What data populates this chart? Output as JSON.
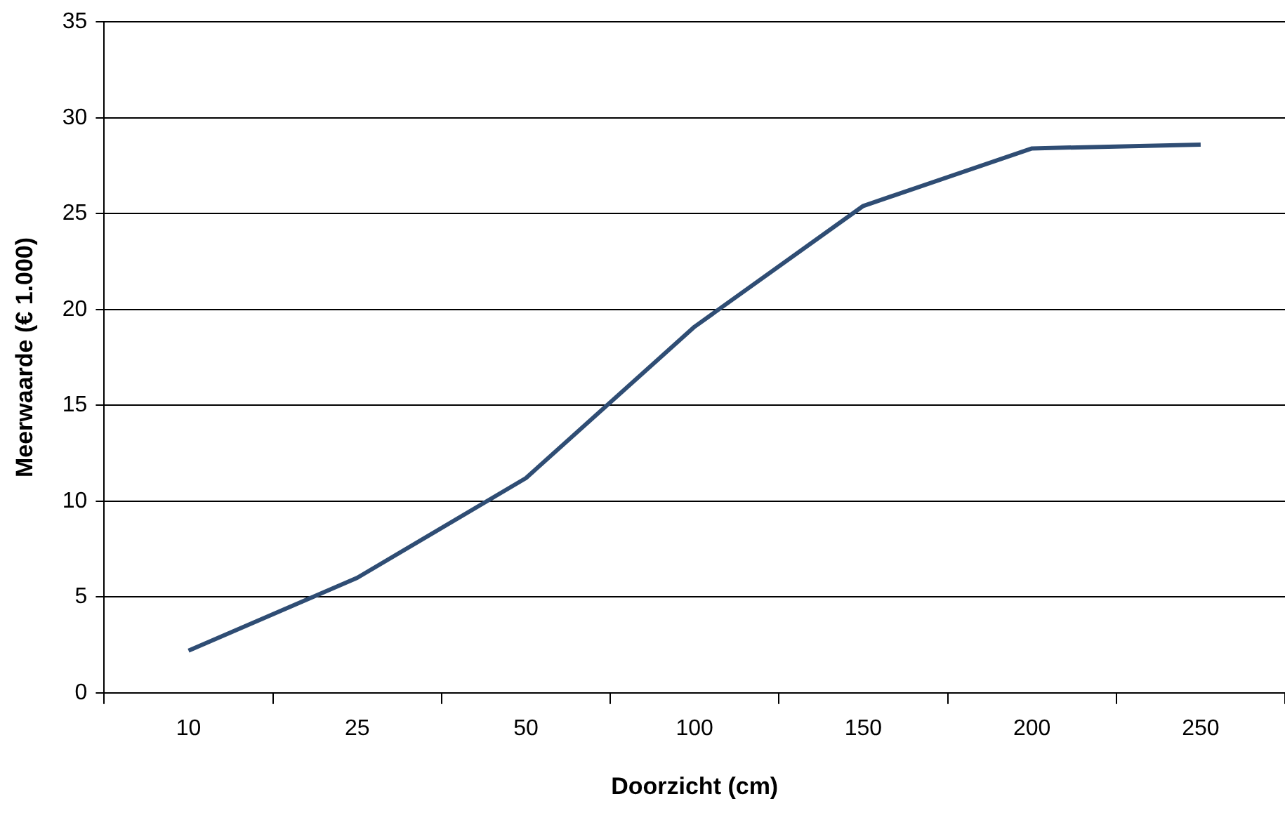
{
  "chart_data": {
    "type": "line",
    "xlabel": "Doorzicht (cm)",
    "ylabel": "Meerwaarde (€ 1.000)",
    "categories": [
      "10",
      "25",
      "50",
      "100",
      "150",
      "200",
      "250"
    ],
    "series": [
      {
        "color": "#2f4d74",
        "values": [
          2.2,
          6.0,
          11.2,
          19.1,
          25.4,
          28.4,
          28.6
        ]
      }
    ],
    "ylim": [
      0,
      35
    ],
    "yticks": [
      0,
      5,
      10,
      15,
      20,
      25,
      30,
      35
    ],
    "grid": "y",
    "legend": false,
    "marker": "none",
    "line_style": "solid"
  }
}
